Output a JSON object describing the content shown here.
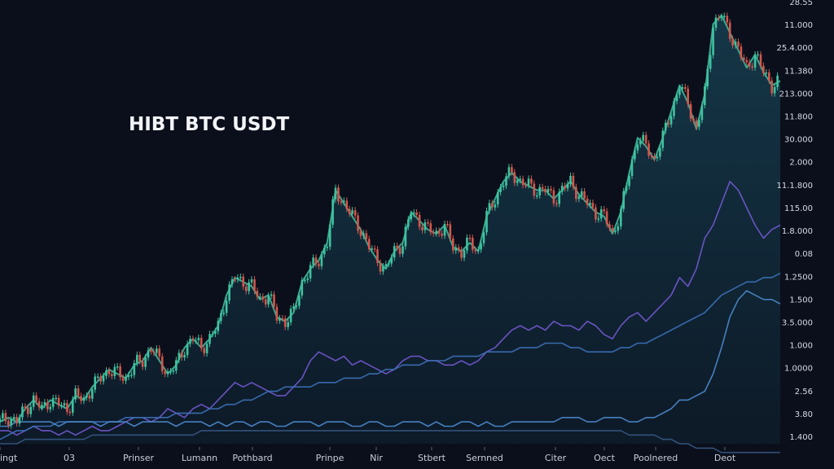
{
  "chart_data": {
    "type": "line",
    "title": "HIBT BTC USDT",
    "y_ticks": [
      "28.55",
      "11.000",
      "25.4.000",
      "11.380",
      "213.000",
      "11.800",
      "30.000",
      "2.000",
      "11.1.800",
      "115.00",
      "1.8.000",
      "0.08",
      "1.2500",
      "1.500",
      "3.5.000",
      "1.000",
      "1.0000",
      "2.56",
      "3.80",
      "1.400"
    ],
    "x_ticks": [
      "ingt",
      "03",
      "Prinser",
      "Lumann",
      "Pothbard",
      "Prinpe",
      "Nir",
      "Stbert",
      "Sernned",
      "Citer",
      "Oect",
      "Poolnered",
      "Deot"
    ],
    "series": [
      {
        "color": "#3fb69a",
        "values": [
          0.05,
          0.06,
          0.05,
          0.08,
          0.1,
          0.08,
          0.1,
          0.09,
          0.08,
          0.11,
          0.1,
          0.13,
          0.15,
          0.17,
          0.16,
          0.15,
          0.18,
          0.19,
          0.22,
          0.19,
          0.16,
          0.18,
          0.22,
          0.24,
          0.22,
          0.24,
          0.27,
          0.34,
          0.38,
          0.37,
          0.36,
          0.33,
          0.34,
          0.29,
          0.28,
          0.3,
          0.37,
          0.4,
          0.42,
          0.46,
          0.58,
          0.55,
          0.52,
          0.49,
          0.45,
          0.42,
          0.4,
          0.44,
          0.46,
          0.53,
          0.51,
          0.49,
          0.48,
          0.5,
          0.45,
          0.44,
          0.46,
          0.44,
          0.52,
          0.56,
          0.6,
          0.62,
          0.6,
          0.59,
          0.58,
          0.58,
          0.56,
          0.58,
          0.6,
          0.57,
          0.55,
          0.53,
          0.52,
          0.48,
          0.53,
          0.62,
          0.7,
          0.68,
          0.65,
          0.7,
          0.76,
          0.82,
          0.78,
          0.72,
          0.8,
          0.96,
          0.98,
          0.94,
          0.9,
          0.86,
          0.89,
          0.85,
          0.82,
          0.83
        ]
      },
      {
        "color": "#6f56c9",
        "values": [
          0.03,
          0.03,
          0.02,
          0.03,
          0.04,
          0.03,
          0.03,
          0.02,
          0.03,
          0.02,
          0.03,
          0.04,
          0.03,
          0.03,
          0.04,
          0.05,
          0.06,
          0.06,
          0.05,
          0.06,
          0.08,
          0.07,
          0.06,
          0.08,
          0.09,
          0.08,
          0.1,
          0.12,
          0.14,
          0.13,
          0.14,
          0.13,
          0.12,
          0.11,
          0.11,
          0.13,
          0.15,
          0.19,
          0.21,
          0.2,
          0.19,
          0.2,
          0.18,
          0.19,
          0.18,
          0.17,
          0.16,
          0.17,
          0.19,
          0.2,
          0.2,
          0.19,
          0.19,
          0.18,
          0.18,
          0.19,
          0.18,
          0.19,
          0.21,
          0.22,
          0.24,
          0.26,
          0.27,
          0.26,
          0.27,
          0.26,
          0.28,
          0.27,
          0.27,
          0.26,
          0.28,
          0.27,
          0.25,
          0.24,
          0.27,
          0.29,
          0.3,
          0.28,
          0.3,
          0.32,
          0.34,
          0.38,
          0.36,
          0.4,
          0.47,
          0.5,
          0.55,
          0.6,
          0.58,
          0.54,
          0.5,
          0.47,
          0.49,
          0.5
        ]
      },
      {
        "color": "#3b6fb3",
        "values": [
          0.01,
          0.02,
          0.03,
          0.03,
          0.04,
          0.04,
          0.04,
          0.05,
          0.05,
          0.05,
          0.05,
          0.05,
          0.05,
          0.05,
          0.05,
          0.06,
          0.06,
          0.06,
          0.06,
          0.06,
          0.06,
          0.07,
          0.07,
          0.07,
          0.07,
          0.08,
          0.08,
          0.09,
          0.09,
          0.1,
          0.1,
          0.11,
          0.12,
          0.12,
          0.13,
          0.13,
          0.13,
          0.13,
          0.14,
          0.14,
          0.14,
          0.15,
          0.15,
          0.15,
          0.16,
          0.16,
          0.17,
          0.17,
          0.18,
          0.18,
          0.18,
          0.19,
          0.19,
          0.19,
          0.2,
          0.2,
          0.2,
          0.2,
          0.21,
          0.21,
          0.21,
          0.21,
          0.22,
          0.22,
          0.22,
          0.23,
          0.23,
          0.23,
          0.22,
          0.22,
          0.21,
          0.21,
          0.21,
          0.21,
          0.22,
          0.22,
          0.23,
          0.23,
          0.24,
          0.25,
          0.26,
          0.27,
          0.28,
          0.29,
          0.3,
          0.32,
          0.34,
          0.35,
          0.36,
          0.37,
          0.37,
          0.38,
          0.38,
          0.39
        ]
      },
      {
        "color": "#4a86c6",
        "values": [
          0.04,
          0.04,
          0.05,
          0.05,
          0.05,
          0.05,
          0.05,
          0.04,
          0.05,
          0.05,
          0.05,
          0.05,
          0.04,
          0.05,
          0.05,
          0.05,
          0.04,
          0.05,
          0.05,
          0.05,
          0.05,
          0.04,
          0.05,
          0.05,
          0.05,
          0.04,
          0.05,
          0.04,
          0.05,
          0.05,
          0.04,
          0.05,
          0.05,
          0.04,
          0.04,
          0.05,
          0.05,
          0.05,
          0.04,
          0.05,
          0.05,
          0.05,
          0.04,
          0.04,
          0.05,
          0.05,
          0.04,
          0.04,
          0.05,
          0.05,
          0.05,
          0.04,
          0.05,
          0.04,
          0.04,
          0.05,
          0.05,
          0.04,
          0.05,
          0.04,
          0.04,
          0.05,
          0.05,
          0.05,
          0.05,
          0.05,
          0.05,
          0.06,
          0.06,
          0.06,
          0.05,
          0.05,
          0.06,
          0.06,
          0.06,
          0.05,
          0.05,
          0.06,
          0.06,
          0.07,
          0.08,
          0.1,
          0.1,
          0.11,
          0.12,
          0.16,
          0.22,
          0.29,
          0.33,
          0.35,
          0.34,
          0.33,
          0.33,
          0.32
        ]
      },
      {
        "color": "#35547e",
        "values": [
          0.0,
          0.0,
          0.0,
          0.01,
          0.01,
          0.01,
          0.01,
          0.01,
          0.01,
          0.01,
          0.01,
          0.02,
          0.02,
          0.02,
          0.02,
          0.02,
          0.02,
          0.02,
          0.02,
          0.02,
          0.02,
          0.02,
          0.02,
          0.02,
          0.03,
          0.03,
          0.03,
          0.03,
          0.03,
          0.03,
          0.03,
          0.03,
          0.03,
          0.03,
          0.03,
          0.03,
          0.03,
          0.03,
          0.03,
          0.03,
          0.03,
          0.03,
          0.03,
          0.03,
          0.03,
          0.03,
          0.03,
          0.03,
          0.03,
          0.03,
          0.03,
          0.03,
          0.03,
          0.03,
          0.03,
          0.03,
          0.03,
          0.03,
          0.03,
          0.03,
          0.03,
          0.03,
          0.03,
          0.03,
          0.03,
          0.03,
          0.03,
          0.03,
          0.03,
          0.03,
          0.03,
          0.03,
          0.03,
          0.03,
          0.03,
          0.02,
          0.02,
          0.02,
          0.02,
          0.01,
          0.01,
          0.0,
          0.0,
          -0.01,
          -0.01,
          -0.01,
          -0.02,
          -0.02,
          -0.02,
          -0.02,
          -0.02,
          -0.02,
          -0.02,
          -0.02
        ]
      }
    ],
    "ylim": [
      0,
      1
    ],
    "grid": false,
    "legend": "none",
    "colors": {
      "background": "#0b0f1b",
      "area_fill": "#123242",
      "candle_up": "#3fc29f",
      "candle_down": "#d2574c"
    }
  }
}
